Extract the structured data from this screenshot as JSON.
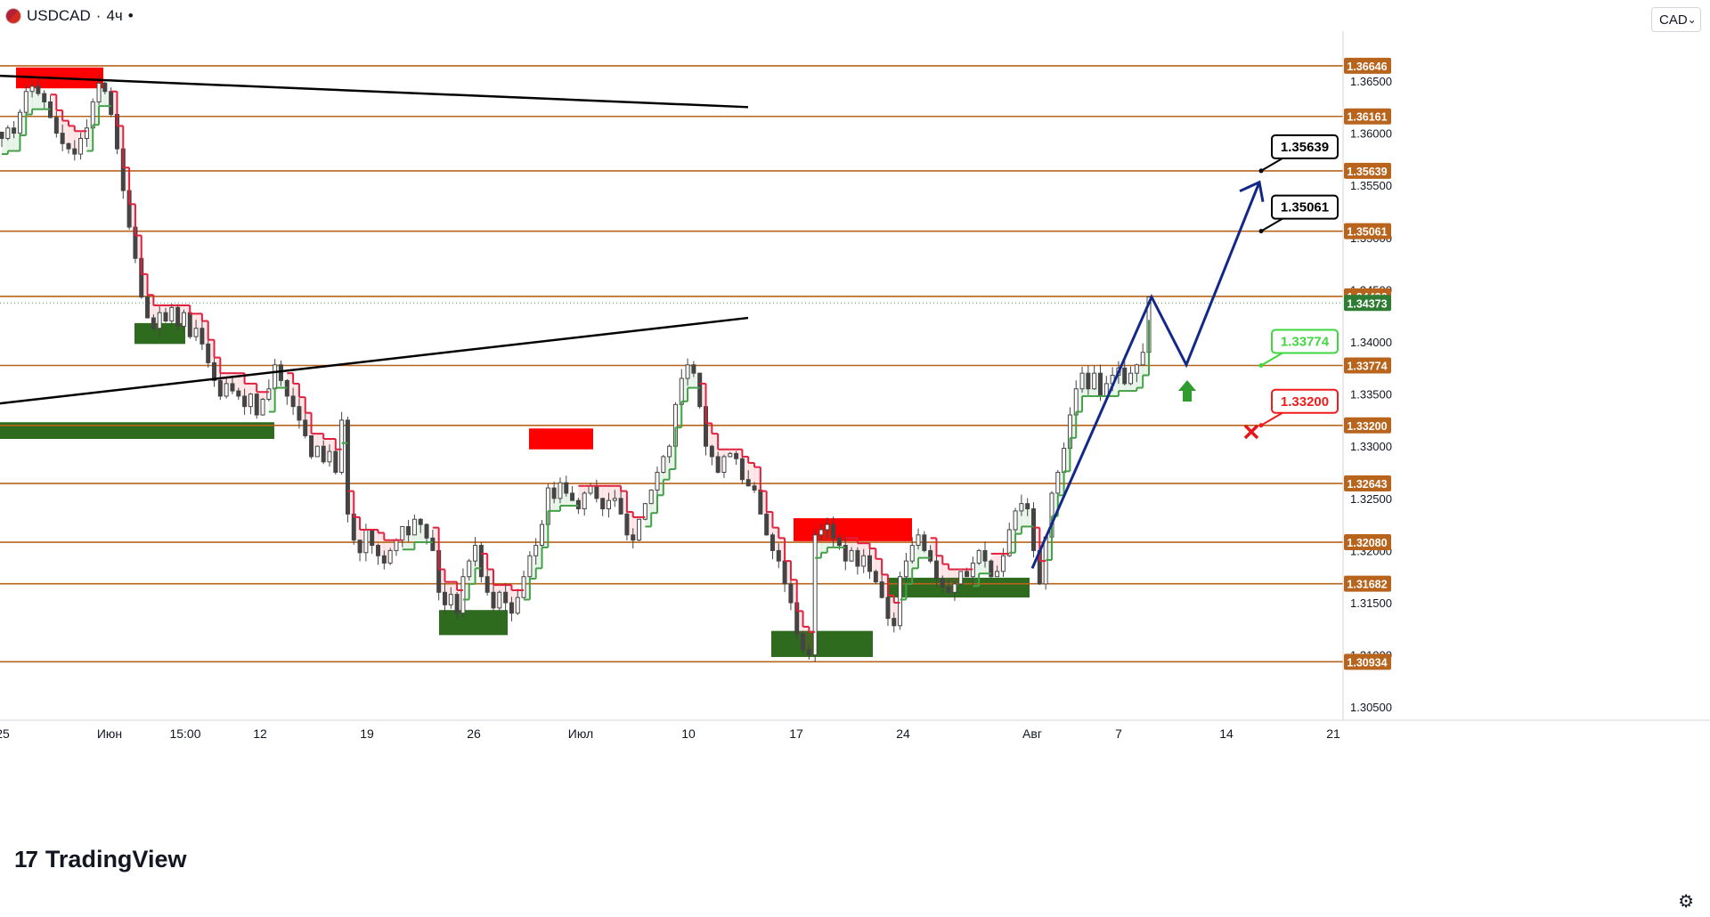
{
  "header": {
    "symbol": "USDCAD",
    "separator": "·",
    "interval": "4ч",
    "status_dot": "•",
    "currency": "CAD",
    "currency_caret": "⌄"
  },
  "branding": {
    "logo_mark": "17",
    "logo_text": "TradingView"
  },
  "settings_icon": "gear-icon",
  "colors": {
    "level_line": "#b8641c",
    "level_label_bg": "#b8641c",
    "last_price_bg": "#2e7d32",
    "bear_line": "#e0203c",
    "bear_fill": "rgba(242,54,69,0.12)",
    "bull_line": "#43a047",
    "bull_fill": "rgba(76,175,80,0.12)",
    "supply_zone": "#ff0000",
    "demand_zone": "#2e6b1e",
    "trendline": "#000000",
    "projection": "#13298a",
    "candle": "#444444"
  },
  "chart_data": {
    "type": "candlestick",
    "symbol": "USDCAD",
    "interval": "4ч",
    "xlabel": "",
    "ylabel": "",
    "x_ticks": [
      "25",
      "Июн",
      "15:00",
      "12",
      "19",
      "26",
      "Июл",
      "10",
      "17",
      "24",
      "Авг",
      "7",
      "14",
      "21"
    ],
    "y_ticks": [
      "1.36500",
      "1.36000",
      "1.35500",
      "1.35000",
      "1.34500",
      "1.34000",
      "1.33500",
      "1.33000",
      "1.32500",
      "1.32000",
      "1.31500",
      "1.31000",
      "1.30500"
    ],
    "ylim": [
      1.305,
      1.368
    ],
    "grid": false,
    "horizontal_levels": [
      "1.36646",
      "1.36161",
      "1.35639",
      "1.35061",
      "1.34436",
      "1.33774",
      "1.33200",
      "1.32643",
      "1.32080",
      "1.31682",
      "1.30934"
    ],
    "last_price": "1.34373",
    "targets": [
      {
        "label": "1.35639",
        "kind": "take-profit",
        "color": "#000000"
      },
      {
        "label": "1.35061",
        "kind": "take-profit",
        "color": "#000000"
      },
      {
        "label": "1.33774",
        "kind": "entry",
        "color": "#3fd63f"
      },
      {
        "label": "1.33200",
        "kind": "stop-loss",
        "color": "#f01c1c"
      }
    ],
    "supply_zones": [
      {
        "period": "late May",
        "price_range": [
          1.3643,
          1.3663
        ]
      },
      {
        "period": "early July",
        "price_range": [
          1.3297,
          1.3317
        ]
      },
      {
        "period": "mid July",
        "price_range": [
          1.3209,
          1.3231
        ]
      }
    ],
    "demand_zones": [
      {
        "period": "early June",
        "price_range": [
          1.3398,
          1.3418
        ]
      },
      {
        "period": "May–mid June",
        "price_range": [
          1.3307,
          1.3323
        ]
      },
      {
        "period": "late June",
        "price_range": [
          1.3119,
          1.3143
        ]
      },
      {
        "period": "mid July",
        "price_range": [
          1.3098,
          1.3123
        ]
      },
      {
        "period": "late July",
        "price_range": [
          1.3155,
          1.3174
        ]
      }
    ],
    "trendlines": [
      {
        "from": [
          1.3655
        ],
        "to": [
          1.3625
        ]
      },
      {
        "from": [
          1.3341
        ],
        "to": [
          1.3423
        ]
      }
    ],
    "projection_path": [
      1.3183,
      1.3443,
      1.3378,
      1.3553
    ],
    "close_series": [
      1.3595,
      1.3605,
      1.36,
      1.362,
      1.364,
      1.3645,
      1.3638,
      1.363,
      1.3615,
      1.36,
      1.359,
      1.3585,
      1.358,
      1.3595,
      1.3605,
      1.363,
      1.3648,
      1.364,
      1.3618,
      1.3585,
      1.3545,
      1.351,
      1.348,
      1.3443,
      1.3423,
      1.3413,
      1.3428,
      1.342,
      1.3433,
      1.3415,
      1.3428,
      1.3405,
      1.3413,
      1.3398,
      1.338,
      1.3363,
      1.3348,
      1.336,
      1.3353,
      1.3348,
      1.3338,
      1.335,
      1.333,
      1.3345,
      1.3355,
      1.3378,
      1.3363,
      1.3348,
      1.3338,
      1.3325,
      1.331,
      1.329,
      1.33,
      1.3285,
      1.3295,
      1.3275,
      1.3325,
      1.3235,
      1.321,
      1.3198,
      1.322,
      1.3205,
      1.3195,
      1.3188,
      1.32,
      1.321,
      1.3223,
      1.3215,
      1.323,
      1.3225,
      1.3212,
      1.32,
      1.316,
      1.3148,
      1.3158,
      1.314,
      1.3175,
      1.319,
      1.3205,
      1.3175,
      1.316,
      1.3145,
      1.316,
      1.315,
      1.314,
      1.3155,
      1.3175,
      1.3195,
      1.3205,
      1.3225,
      1.326,
      1.325,
      1.3265,
      1.3255,
      1.3248,
      1.324,
      1.3255,
      1.3262,
      1.325,
      1.324,
      1.3248,
      1.325,
      1.3235,
      1.3215,
      1.321,
      1.323,
      1.3245,
      1.3258,
      1.3275,
      1.329,
      1.33,
      1.334,
      1.3365,
      1.3378,
      1.337,
      1.3338,
      1.33,
      1.329,
      1.3275,
      1.329,
      1.3293,
      1.3288,
      1.3268,
      1.3262,
      1.3258,
      1.3235,
      1.3215,
      1.32,
      1.319,
      1.3168,
      1.315,
      1.312,
      1.3105,
      1.31,
      1.3215,
      1.322,
      1.3225,
      1.3212,
      1.3205,
      1.319,
      1.32,
      1.3185,
      1.3195,
      1.318,
      1.317,
      1.3155,
      1.3135,
      1.3128,
      1.3175,
      1.319,
      1.3205,
      1.3215,
      1.32,
      1.319,
      1.3173,
      1.3165,
      1.316,
      1.3168,
      1.318,
      1.3175,
      1.3188,
      1.32,
      1.319,
      1.3175,
      1.318,
      1.3195,
      1.322,
      1.3238,
      1.3245,
      1.324,
      1.32,
      1.3168,
      1.3213,
      1.3255,
      1.3275,
      1.3298,
      1.333,
      1.3355,
      1.337,
      1.3355,
      1.337,
      1.3348,
      1.336,
      1.3368,
      1.3375,
      1.336,
      1.337,
      1.3378,
      1.339,
      1.3443
    ]
  }
}
